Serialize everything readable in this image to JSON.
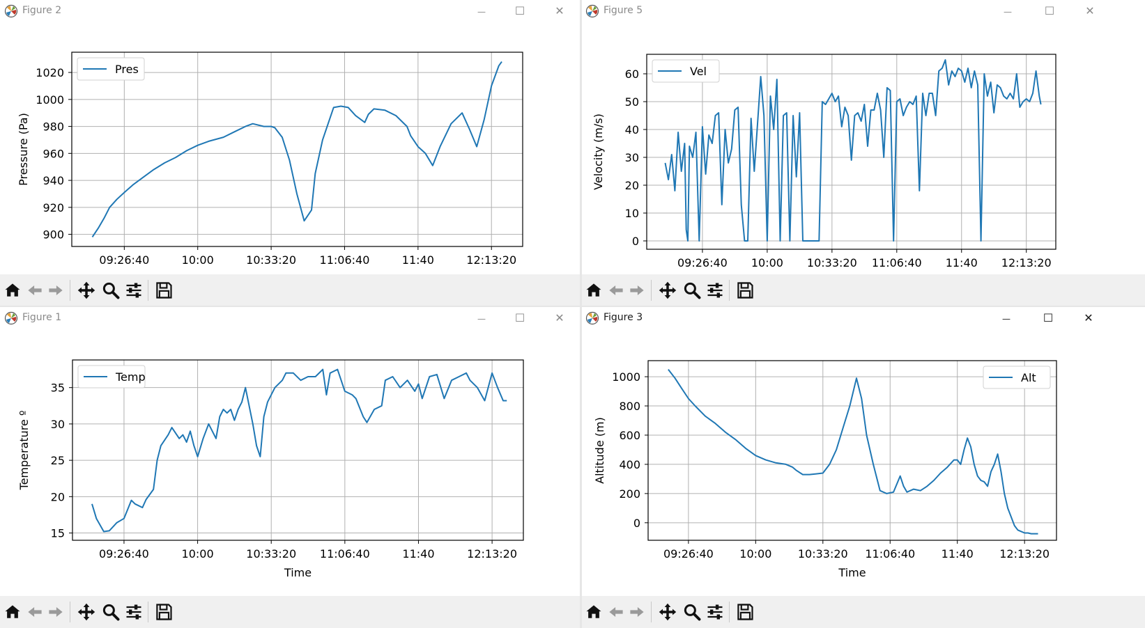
{
  "windows": [
    {
      "id": "w2",
      "title": "Figure 2",
      "active": false,
      "chart_data": {
        "type": "line",
        "title": "",
        "xlabel": "Time",
        "ylabel": "Pressure (Pa)",
        "xticks": [
          "09:26:40",
          "10:00",
          "10:33:20",
          "11:06:40",
          "11:40",
          "12:13:20"
        ],
        "xtick_seconds": [
          34000,
          36000,
          38000,
          40000,
          42000,
          44000
        ],
        "xlim": [
          32570,
          44850
        ],
        "yticks": [
          900,
          920,
          940,
          960,
          980,
          1000,
          1020
        ],
        "ylim": [
          891,
          1035
        ],
        "grid": true,
        "legend": "top-left",
        "series": [
          {
            "name": "Pres",
            "color": "#1f77b4",
            "x": [
              33130,
              33300,
              33450,
              33600,
              33800,
              34000,
              34250,
              34500,
              34800,
              35100,
              35400,
              35700,
              36000,
              36300,
              36700,
              37000,
              37300,
              37500,
              37800,
              38000,
              38100,
              38300,
              38500,
              38700,
              38900,
              39100,
              39200,
              39400,
              39700,
              39900,
              40100,
              40300,
              40550,
              40650,
              40800,
              41100,
              41400,
              41700,
              41800,
              42000,
              42200,
              42400,
              42600,
              42900,
              43200,
              43400,
              43600,
              43800,
              44000,
              44200,
              44280
            ],
            "y": [
              898,
              905,
              912,
              920,
              926,
              931,
              937,
              942,
              948,
              953,
              957,
              962,
              966,
              969,
              972,
              976,
              980,
              982,
              980,
              980,
              979,
              972,
              955,
              930,
              910,
              918,
              945,
              970,
              994,
              995,
              994,
              988,
              983,
              989,
              993,
              992,
              988,
              980,
              973,
              965,
              960,
              951,
              965,
              982,
              990,
              978,
              965,
              985,
              1010,
              1025,
              1028
            ]
          }
        ]
      }
    },
    {
      "id": "w5",
      "title": "Figure 5",
      "active": false,
      "chart_data": {
        "type": "line",
        "title": "",
        "xlabel": "Time",
        "ylabel": "Velocity (m/s)",
        "xticks": [
          "09:26:40",
          "10:00",
          "10:33:20",
          "11:06:40",
          "11:40",
          "12:13:20"
        ],
        "xtick_seconds": [
          34000,
          36000,
          38000,
          40000,
          42000,
          44000
        ],
        "xlim": [
          32280,
          44910
        ],
        "yticks": [
          0,
          10,
          20,
          30,
          40,
          50,
          60
        ],
        "ylim": [
          -3,
          67
        ],
        "grid": true,
        "legend": "top-left",
        "series": [
          {
            "name": "Vel",
            "color": "#1f77b4",
            "x": [
              32850,
              32950,
              33050,
              33150,
              33250,
              33350,
              33450,
              33500,
              33550,
              33600,
              33700,
              33800,
              33900,
              34000,
              34100,
              34200,
              34300,
              34400,
              34500,
              34600,
              34700,
              34800,
              34900,
              35000,
              35100,
              35200,
              35300,
              35400,
              35500,
              35600,
              35700,
              35800,
              35900,
              36000,
              36100,
              36200,
              36300,
              36400,
              36500,
              36600,
              36700,
              36800,
              36900,
              37000,
              37100,
              37200,
              37300,
              37400,
              37500,
              37600,
              37700,
              37800,
              37900,
              38000,
              38100,
              38200,
              38300,
              38400,
              38500,
              38600,
              38700,
              38800,
              38900,
              39000,
              39100,
              39200,
              39300,
              39400,
              39500,
              39600,
              39700,
              39800,
              39900,
              40000,
              40100,
              40200,
              40300,
              40400,
              40500,
              40600,
              40700,
              40800,
              40900,
              41000,
              41100,
              41200,
              41300,
              41400,
              41500,
              41600,
              41700,
              41800,
              41900,
              42000,
              42100,
              42200,
              42300,
              42400,
              42500,
              42600,
              42700,
              42800,
              42900,
              43000,
              43100,
              43200,
              43300,
              43400,
              43500,
              43600,
              43700,
              43800,
              43900,
              44000,
              44100,
              44200,
              44300,
              44400,
              44450
            ],
            "y": [
              28,
              22,
              31,
              18,
              39,
              25,
              35,
              4,
              0,
              34,
              30,
              39,
              0,
              41,
              24,
              38,
              35,
              45,
              46,
              13,
              40,
              28,
              33,
              47,
              48,
              13,
              0,
              0,
              44,
              25,
              42,
              59,
              45,
              0,
              52,
              40,
              58,
              0,
              45,
              46,
              0,
              45,
              23,
              46,
              0,
              0,
              0,
              0,
              0,
              0,
              50,
              49,
              51,
              53,
              50,
              52,
              41,
              48,
              45,
              29,
              45,
              46,
              43,
              49,
              34,
              47,
              47,
              53,
              47,
              30,
              55,
              54,
              0,
              50,
              51,
              45,
              48,
              50,
              49,
              52,
              18,
              53,
              45,
              53,
              53,
              45,
              61,
              62,
              65,
              56,
              61,
              59,
              62,
              61,
              57,
              62,
              55,
              61,
              56,
              0,
              60,
              52,
              57,
              46,
              56,
              55,
              52,
              51,
              53,
              51,
              60,
              48,
              50,
              51,
              50,
              53,
              61,
              52,
              49
            ]
          }
        ]
      }
    },
    {
      "id": "w1",
      "title": "Figure 1",
      "active": false,
      "chart_data": {
        "type": "line",
        "title": "",
        "xlabel": "Time",
        "ylabel": "Temperature º",
        "xticks": [
          "09:26:40",
          "10:00",
          "10:33:20",
          "11:06:40",
          "11:40",
          "12:13:20"
        ],
        "xtick_seconds": [
          34000,
          36000,
          38000,
          40000,
          42000,
          44000
        ],
        "xlim": [
          32600,
          44850
        ],
        "yticks": [
          15,
          20,
          25,
          30,
          35
        ],
        "ylim": [
          14,
          38.8
        ],
        "grid": true,
        "legend": "top-left",
        "series": [
          {
            "name": "Temp",
            "color": "#1f77b4",
            "x": [
              33130,
              33250,
              33450,
              33600,
              33800,
              34000,
              34200,
              34300,
              34500,
              34600,
              34800,
              34900,
              35000,
              35200,
              35300,
              35500,
              35600,
              35700,
              35800,
              35900,
              36000,
              36150,
              36300,
              36500,
              36600,
              36700,
              36800,
              36900,
              37000,
              37100,
              37200,
              37300,
              37500,
              37600,
              37700,
              37800,
              37900,
              38000,
              38100,
              38300,
              38400,
              38600,
              38800,
              39000,
              39200,
              39400,
              39500,
              39600,
              39800,
              40000,
              40200,
              40300,
              40500,
              40600,
              40800,
              41000,
              41100,
              41300,
              41500,
              41700,
              41900,
              42000,
              42100,
              42300,
              42500,
              42700,
              42900,
              43100,
              43300,
              43400,
              43600,
              43800,
              44000,
              44150,
              44300,
              44400
            ],
            "y": [
              19,
              17,
              15.2,
              15.3,
              16.4,
              17,
              19.5,
              19,
              18.5,
              19.6,
              21,
              25,
              27,
              28.5,
              29.5,
              28,
              28.5,
              27.5,
              29,
              27,
              25.5,
              28,
              30,
              28,
              31,
              32,
              31.5,
              32,
              30.5,
              32,
              33,
              35,
              30,
              27,
              25.5,
              31,
              33,
              34,
              35,
              36,
              37,
              37,
              36,
              36.5,
              36.5,
              37.5,
              34,
              37,
              37.5,
              34.5,
              34,
              33.5,
              31,
              30.2,
              32,
              32.5,
              36,
              36.5,
              35,
              36,
              34.5,
              35.5,
              33.5,
              36.5,
              36.8,
              33.5,
              36,
              36.5,
              37,
              36,
              35,
              33.2,
              37,
              35,
              33.2,
              33.2
            ]
          }
        ]
      }
    },
    {
      "id": "w3",
      "title": "Figure 3",
      "active": true,
      "chart_data": {
        "type": "line",
        "title": "",
        "xlabel": "Time",
        "ylabel": "Altitude (m)",
        "xticks": [
          "09:26:40",
          "10:00",
          "10:33:20",
          "11:06:40",
          "11:40",
          "12:13:20"
        ],
        "xtick_seconds": [
          34000,
          36000,
          38000,
          40000,
          42000,
          44000
        ],
        "xlim": [
          32800,
          44950
        ],
        "yticks": [
          0,
          200,
          400,
          600,
          800,
          1000
        ],
        "ylim": [
          -120,
          1110
        ],
        "grid": true,
        "legend": "top-right",
        "series": [
          {
            "name": "Alt",
            "color": "#1f77b4",
            "x": [
              33400,
              33600,
              33800,
              34000,
              34200,
              34500,
              34800,
              35100,
              35400,
              35700,
              36000,
              36300,
              36600,
              36900,
              37100,
              37200,
              37400,
              37600,
              37800,
              38000,
              38200,
              38400,
              38600,
              38800,
              39000,
              39150,
              39300,
              39500,
              39700,
              39900,
              40100,
              40300,
              40400,
              40500,
              40700,
              40900,
              41100,
              41300,
              41500,
              41700,
              41900,
              42000,
              42100,
              42200,
              42300,
              42400,
              42500,
              42600,
              42700,
              42800,
              42900,
              43000,
              43100,
              43200,
              43300,
              43400,
              43500,
              43600,
              43700,
              43800,
              43900,
              44000,
              44100,
              44200,
              44300,
              44400
            ],
            "y": [
              1050,
              990,
              920,
              850,
              800,
              730,
              680,
              620,
              570,
              510,
              460,
              430,
              410,
              400,
              380,
              360,
              330,
              330,
              335,
              340,
              400,
              500,
              650,
              800,
              990,
              850,
              600,
              400,
              220,
              200,
              210,
              320,
              250,
              210,
              230,
              220,
              250,
              290,
              340,
              380,
              430,
              430,
              400,
              500,
              580,
              520,
              400,
              320,
              290,
              280,
              250,
              350,
              400,
              470,
              350,
              200,
              100,
              40,
              -20,
              -50,
              -60,
              -70,
              -70,
              -75,
              -75,
              -75
            ]
          }
        ]
      }
    }
  ]
}
